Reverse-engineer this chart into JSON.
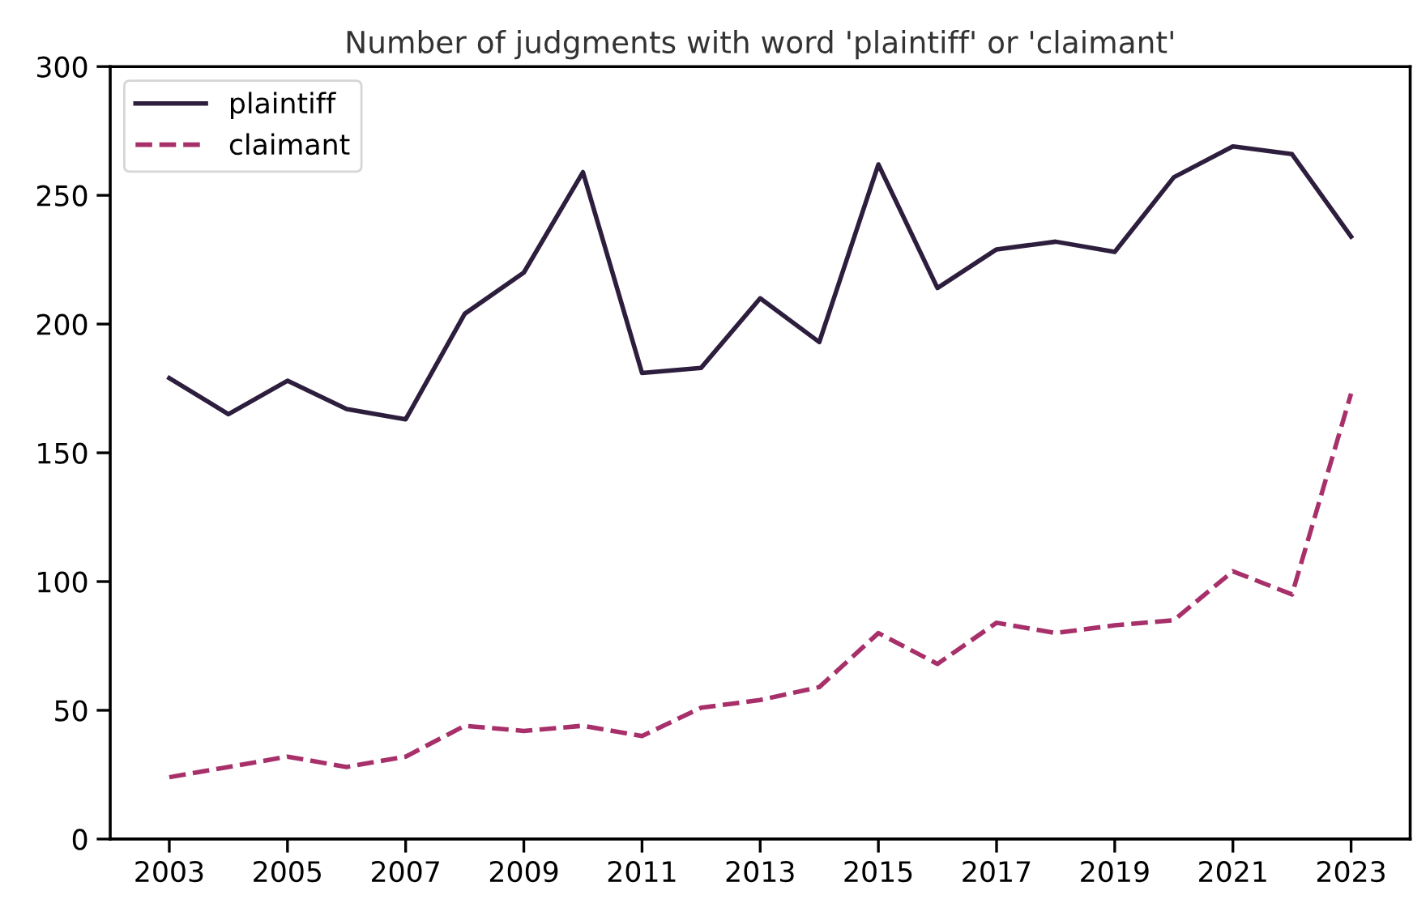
{
  "chart_data": {
    "type": "line",
    "title": "Number of judgments with word 'plaintiff' or 'claimant'",
    "x": [
      2003,
      2004,
      2005,
      2006,
      2007,
      2008,
      2009,
      2010,
      2011,
      2012,
      2013,
      2014,
      2015,
      2016,
      2017,
      2018,
      2019,
      2020,
      2021,
      2022,
      2023
    ],
    "series": [
      {
        "name": "plaintiff",
        "color": "#2d1e3e",
        "line_style": "solid",
        "values": [
          179,
          165,
          178,
          167,
          163,
          204,
          220,
          259,
          181,
          183,
          210,
          193,
          262,
          214,
          229,
          232,
          228,
          257,
          269,
          266,
          234
        ]
      },
      {
        "name": "claimant",
        "color": "#a8306a",
        "line_style": "dashed",
        "values": [
          24,
          28,
          32,
          28,
          32,
          44,
          42,
          44,
          40,
          51,
          54,
          59,
          80,
          68,
          84,
          80,
          83,
          85,
          104,
          95,
          173
        ]
      }
    ],
    "xlim": [
      2002,
      2024
    ],
    "xticks": [
      2003,
      2005,
      2007,
      2009,
      2011,
      2013,
      2015,
      2017,
      2019,
      2021,
      2023
    ],
    "ylim": [
      0,
      300
    ],
    "yticks": [
      0,
      50,
      100,
      150,
      200,
      250,
      300
    ],
    "grid": false,
    "legend": "top left"
  }
}
